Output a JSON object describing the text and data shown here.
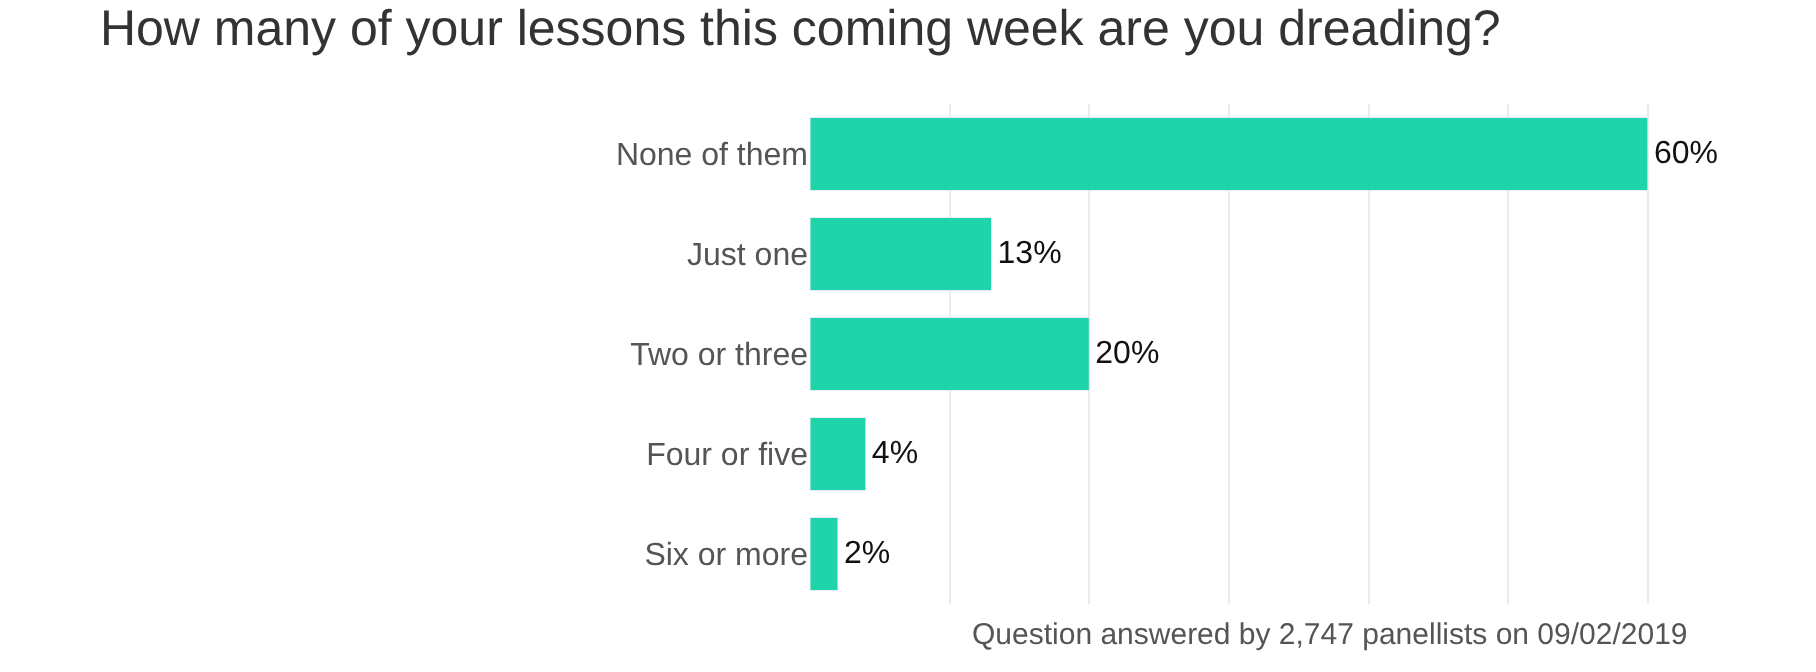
{
  "chart_data": {
    "type": "bar",
    "orientation": "horizontal",
    "title": "How many of your lessons this coming week are you dreading?",
    "categories": [
      "None of them",
      "Just one",
      "Two or three",
      "Four or five",
      "Six or more"
    ],
    "values": [
      60,
      13,
      20,
      4,
      2
    ],
    "value_labels": [
      "60%",
      "13%",
      "20%",
      "4%",
      "2%"
    ],
    "color": "#1fd4a8",
    "xticks": [
      {
        "value": 10,
        "label": null
      },
      {
        "value": 20,
        "label": null
      },
      {
        "value": 30,
        "label": null
      },
      {
        "value": 40,
        "label": null
      },
      {
        "value": 50,
        "label": null
      },
      {
        "value": 60,
        "label": null
      }
    ],
    "grid": "x",
    "annotations": [
      "Question answered by 2,747 panellists on 09/02/2019"
    ]
  }
}
